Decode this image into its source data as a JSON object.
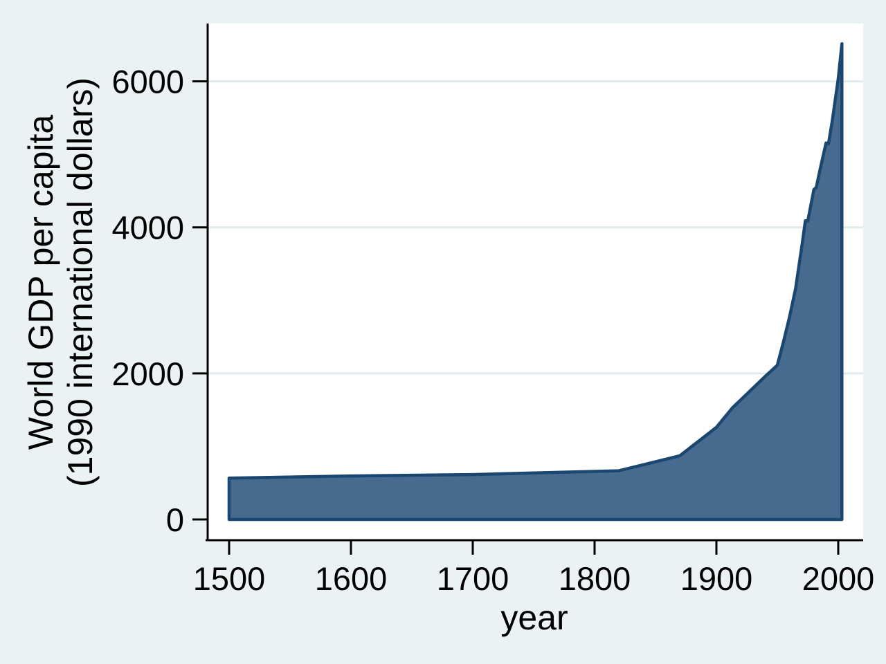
{
  "figure": {
    "background_color": "#eaf2f3",
    "plot_background_color": "#ffffff",
    "grid_color": "#e0ebee",
    "axis_color": "#000000",
    "text_color": "#000000"
  },
  "chart_data": {
    "type": "area",
    "title": "",
    "xlabel": "year",
    "ylabel_line1": "World GDP per capita",
    "ylabel_line2": "(1990 international dollars)",
    "area_fill_color": "#476b8f",
    "area_line_color": "#1a476f",
    "grid": true,
    "legend": "none",
    "xlim": [
      1500,
      2003
    ],
    "ylim": [
      0,
      6516
    ],
    "baseline": 0,
    "x_ticks": [
      {
        "value": 1500,
        "label": "1500"
      },
      {
        "value": 1600,
        "label": "1600"
      },
      {
        "value": 1700,
        "label": "1700"
      },
      {
        "value": 1800,
        "label": "1800"
      },
      {
        "value": 1900,
        "label": "1900"
      },
      {
        "value": 2000,
        "label": "2000"
      }
    ],
    "y_ticks": [
      {
        "value": 0,
        "label": "0"
      },
      {
        "value": 2000,
        "label": "2000"
      },
      {
        "value": 4000,
        "label": "4000"
      },
      {
        "value": 6000,
        "label": "6000"
      }
    ],
    "series": [
      {
        "name": "World GDP per capita (1990 international dollars)",
        "points": [
          [
            1500,
            566
          ],
          [
            1600,
            596
          ],
          [
            1700,
            615
          ],
          [
            1820,
            667
          ],
          [
            1870,
            873
          ],
          [
            1900,
            1262
          ],
          [
            1913,
            1526
          ],
          [
            1940,
            1958
          ],
          [
            1950,
            2113
          ],
          [
            1955,
            2430
          ],
          [
            1960,
            2773
          ],
          [
            1965,
            3162
          ],
          [
            1970,
            3729
          ],
          [
            1973,
            4091
          ],
          [
            1975,
            4088
          ],
          [
            1980,
            4519
          ],
          [
            1982,
            4548
          ],
          [
            1985,
            4788
          ],
          [
            1990,
            5157
          ],
          [
            1992,
            5145
          ],
          [
            1995,
            5448
          ],
          [
            2000,
            6037
          ],
          [
            2003,
            6516
          ]
        ]
      }
    ]
  }
}
